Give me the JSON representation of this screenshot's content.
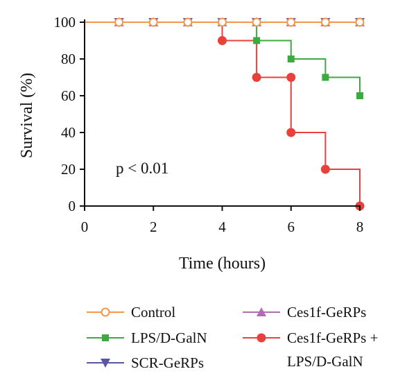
{
  "chart_data": {
    "type": "line",
    "subtype": "kaplan-meier step",
    "title": "",
    "xlabel": "Time (hours)",
    "ylabel": "Survival (%)",
    "xlim": [
      0,
      8
    ],
    "ylim": [
      0,
      100
    ],
    "x_ticks": [
      "0",
      "2",
      "4",
      "6",
      "8"
    ],
    "y_ticks": [
      "0",
      "20",
      "40",
      "60",
      "80",
      "100"
    ],
    "grid": false,
    "annotation": "p < 0.01",
    "legend_position": "bottom",
    "series": [
      {
        "name": "Control",
        "color": "#F4974A",
        "marker": "open-circle",
        "x": [
          0,
          1,
          2,
          3,
          4,
          5,
          6,
          7,
          8
        ],
        "y": [
          100,
          100,
          100,
          100,
          100,
          100,
          100,
          100,
          100
        ]
      },
      {
        "name": "LPS/D-GalN",
        "color": "#3DAA3F",
        "marker": "square",
        "x": [
          0,
          1,
          2,
          3,
          4,
          5,
          6,
          7,
          8
        ],
        "y": [
          100,
          100,
          100,
          100,
          100,
          90,
          80,
          70,
          60
        ]
      },
      {
        "name": "SCR-GeRPs",
        "color": "#5A56A6",
        "marker": "triangle-down",
        "x": [
          0,
          1,
          2,
          3,
          4,
          5,
          6,
          7,
          8
        ],
        "y": [
          100,
          100,
          100,
          100,
          100,
          100,
          100,
          100,
          100
        ]
      },
      {
        "name": "Ces1f-GeRPs",
        "color": "#B46CB1",
        "marker": "triangle-up",
        "x": [
          0,
          1,
          2,
          3,
          4,
          5,
          6,
          7,
          8
        ],
        "y": [
          100,
          100,
          100,
          100,
          100,
          100,
          100,
          100,
          100
        ]
      },
      {
        "name": "Ces1f-GeRPs + LPS/D-GalN",
        "name_lines": [
          "Ces1f-GeRPs +",
          "LPS/D-GalN"
        ],
        "color": "#E8413C",
        "marker": "circle",
        "x": [
          0,
          4,
          5,
          6,
          6,
          7,
          8
        ],
        "y": [
          100,
          90,
          70,
          70,
          40,
          20,
          0
        ]
      }
    ]
  }
}
